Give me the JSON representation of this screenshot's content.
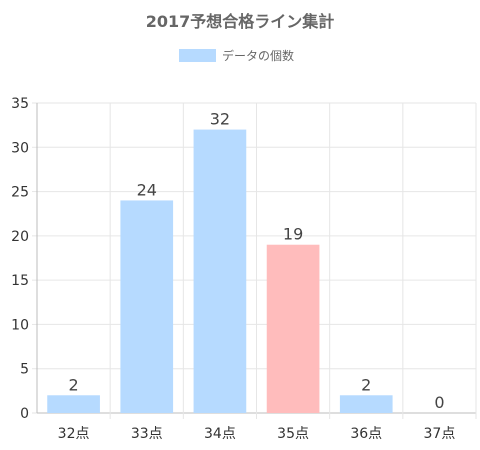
{
  "chart_data": {
    "type": "bar",
    "title": "2017予想合格ライン集計",
    "categories": [
      "32点",
      "33点",
      "34点",
      "35点",
      "36点",
      "37点"
    ],
    "series": [
      {
        "name": "データの個数",
        "values": [
          2,
          24,
          32,
          19,
          2,
          0
        ]
      }
    ],
    "highlight_index": 3,
    "colors": {
      "bar": "#b6daff",
      "bar_highlight": "#ffbcbc",
      "grid": "#e6e6e6",
      "axis": "#bdbdbd"
    },
    "ylim": [
      0,
      35
    ],
    "y_ticks": [
      "0",
      "5",
      "10",
      "15",
      "20",
      "25",
      "30",
      "35"
    ],
    "grid": true,
    "legend_position": "top",
    "xlabel": "",
    "ylabel": ""
  }
}
